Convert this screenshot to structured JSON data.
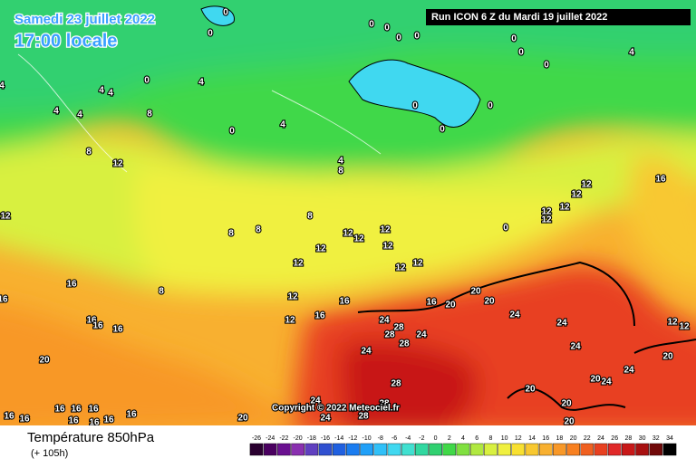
{
  "header": {
    "date": "Samedi 23 juillet 2022",
    "time": "17:00 locale",
    "run": "Run ICON 6 Z du Mardi 19 juillet 2022",
    "copyright": "Copyright © 2022 Meteociel.fr"
  },
  "footer": {
    "title": "Température 850hPa",
    "lead": "(+ 105h)"
  },
  "colorbar": {
    "ticks": [
      -26,
      -24,
      -22,
      -20,
      -18,
      -16,
      -14,
      -12,
      -10,
      -8,
      -6,
      -4,
      -2,
      0,
      2,
      4,
      6,
      8,
      10,
      12,
      14,
      16,
      18,
      20,
      22,
      24,
      26,
      28,
      30,
      32,
      34
    ],
    "colors": [
      "#2a0030",
      "#4a0060",
      "#6a1090",
      "#8a30b0",
      "#6040c0",
      "#3050d0",
      "#2060e0",
      "#1a7cf0",
      "#20a0f8",
      "#30c0f8",
      "#40d8f0",
      "#40e0d0",
      "#30d8a0",
      "#30d070",
      "#40d848",
      "#80e040",
      "#b0e840",
      "#d8f040",
      "#f0f040",
      "#f8e030",
      "#f8c830",
      "#f8b030",
      "#f89828",
      "#f88020",
      "#f06020",
      "#e84020",
      "#e02828",
      "#c81818",
      "#a81010",
      "#700808",
      "#000000"
    ]
  },
  "map": {
    "contour_labels": [
      "0",
      "0",
      "0",
      "0",
      "0",
      "0",
      "0",
      "0",
      "0",
      "4",
      "0",
      "4",
      "4",
      "4",
      "4",
      "4",
      "4",
      "8",
      "0",
      "4",
      "0",
      "0",
      "0",
      "8",
      "12",
      "4",
      "8",
      "16",
      "12",
      "12",
      "12",
      "12",
      "12",
      "12",
      "8",
      "8",
      "8",
      "0",
      "12",
      "12",
      "12",
      "12",
      "12",
      "12",
      "12",
      "12",
      "8",
      "16",
      "16",
      "12",
      "16",
      "16",
      "20",
      "20",
      "20",
      "16",
      "12",
      "16",
      "16",
      "16",
      "24",
      "28",
      "28",
      "24",
      "28",
      "24",
      "24",
      "12",
      "12",
      "24",
      "24",
      "20",
      "20",
      "24",
      "28",
      "20",
      "24",
      "20",
      "24",
      "28",
      "20",
      "16",
      "16",
      "16",
      "16",
      "16",
      "16",
      "16",
      "16",
      "16",
      "20",
      "24",
      "28",
      "20"
    ]
  }
}
